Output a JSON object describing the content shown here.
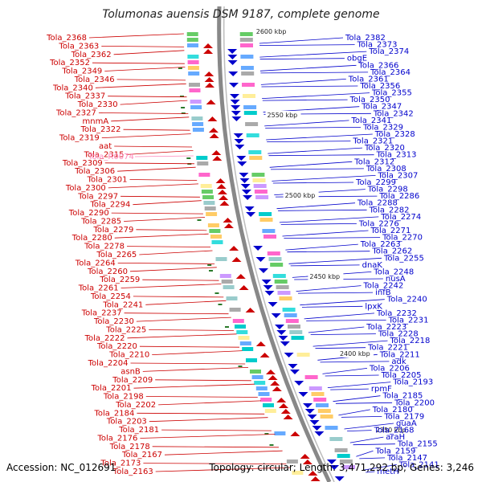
{
  "title": "Tolumonas auensis DSM 9187, complete genome",
  "footer": {
    "accession": "Accession: NC_012691",
    "summary": "Topology: circular; Length: 3,471,292 bp; Genes: 3,246"
  },
  "colors": {
    "left_strand": "#cc0000",
    "right_strand": "#0000cc",
    "rna": "#ff88bb",
    "backbone": "#888888",
    "marker": "#2a7a2a"
  },
  "kbp_labels": [
    "2600 kbp",
    "2550 kbp",
    "2500 kbp",
    "2450 kbp",
    "2400 kbp",
    "2350 kbp"
  ],
  "left_labels": [
    "Tola_2368",
    "Tola_2363",
    "Tola_2362",
    "Tola_2352",
    "Tola_2349",
    "Tola_2346",
    "Tola_2340",
    "Tola_2337",
    "Tola_2330",
    "Tola_2327",
    "mnmA",
    "Tola_2322",
    "Tola_2319",
    "aat",
    "Tola_2315",
    "Tola_2309",
    "Tola_2306",
    "Tola_2301",
    "Tola_2300",
    "Tola_2297",
    "Tola_2294",
    "Tola_2290",
    "Tola_2285",
    "Tola_2279",
    "Tola_2280",
    "Tola_2278",
    "Tola_2265",
    "Tola_2264",
    "Tola_2260",
    "Tola_2259",
    "Tola_2261",
    "Tola_2254",
    "Tola_2241",
    "Tola_2237",
    "Tola_2230",
    "Tola_2225",
    "Tola_2222",
    "Tola_2220",
    "Tola_2210",
    "Tola_2204",
    "asnB",
    "Tola_2209",
    "Tola_2201",
    "Tola_2198",
    "Tola_2202",
    "Tola_2184",
    "Tola_2203",
    "Tola_2181",
    "Tola_2176",
    "Tola_2178",
    "Tola_2167",
    "Tola_2173",
    "Tola_2163"
  ],
  "rna_labels": [
    "Tola_R0074"
  ],
  "right_labels": [
    "Tola_2382",
    "Tola_2373",
    "Tola_2374",
    "obgE",
    "Tola_2366",
    "Tola_2364",
    "Tola_2361",
    "Tola_2356",
    "Tola_2355",
    "Tola_2350",
    "Tola_2347",
    "Tola_2342",
    "Tola_2341",
    "Tola_2329",
    "Tola_2328",
    "Tola_2321",
    "Tola_2320",
    "Tola_2313",
    "Tola_2312",
    "Tola_2308",
    "Tola_2307",
    "Tola_2299",
    "Tola_2298",
    "Tola_2286",
    "Tola_2288",
    "Tola_2282",
    "Tola_2274",
    "Tola_2276",
    "Tola_2271",
    "Tola_2270",
    "Tola_2263",
    "Tola_2262",
    "Tola_2255",
    "dnaK",
    "Tola_2248",
    "nusA",
    "Tola_2242",
    "infB",
    "Tola_2240",
    "lpxK",
    "Tola_2232",
    "Tola_2231",
    "Tola_2223",
    "Tola_2228",
    "Tola_2218",
    "Tola_2221",
    "Tola_2211",
    "adk",
    "Tola_2206",
    "Tola_2205",
    "Tola_2193",
    "rpmF",
    "Tola_2185",
    "Tola_2200",
    "Tola_2180",
    "Tola_2179",
    "guaA",
    "Tola_2168",
    "araH",
    "Tola_2155",
    "Tola_2159",
    "Tola_2147",
    "Tola_2141",
    "metH"
  ]
}
